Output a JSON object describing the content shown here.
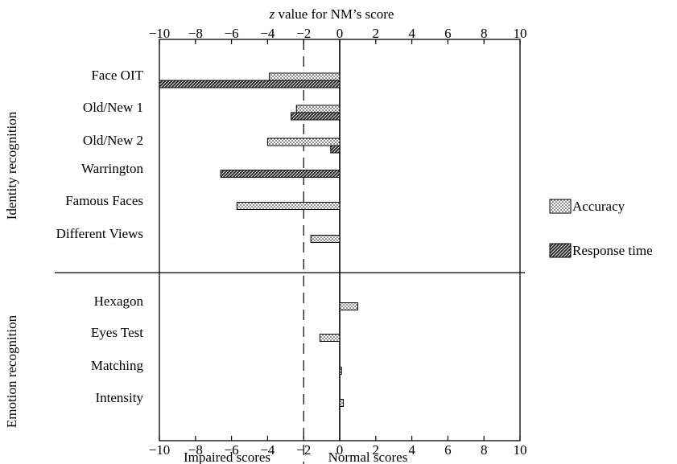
{
  "chart_data": {
    "type": "bar",
    "orientation": "horizontal",
    "title_top": "z value for NM’s score",
    "title_top_italic": "z",
    "title_top_rest": " value for NM’s score",
    "xlim": [
      -10,
      10
    ],
    "xticks": [
      -10,
      -8,
      -6,
      -4,
      -2,
      0,
      2,
      4,
      6,
      8,
      10
    ],
    "xtick_labels": [
      "−10",
      "−8",
      "−6",
      "−4",
      "−2",
      "0",
      "2",
      "4",
      "6",
      "8",
      "10"
    ],
    "cutoff": -2,
    "bottom_labels": {
      "left": "Impaired scores",
      "right": "Normal scores"
    },
    "groups": [
      {
        "label": "Identity recognition",
        "rows": [
          0,
          1,
          2,
          3,
          4,
          5
        ]
      },
      {
        "label": "Emotion recognition",
        "rows": [
          6,
          7,
          8,
          9
        ]
      }
    ],
    "categories": [
      "Face OIT",
      "Old/New 1",
      "Old/New 2",
      "Warrington",
      "Famous Faces",
      "Different Views",
      "Hexagon",
      "Eyes Test",
      "Matching",
      "Intensity"
    ],
    "series": [
      {
        "name": "Accuracy",
        "pattern": "dots",
        "values": [
          -3.9,
          -2.4,
          -4,
          null,
          -5.7,
          -1.6,
          1,
          -1.1,
          0.1,
          0.2
        ]
      },
      {
        "name": "Response time",
        "pattern": "hatch",
        "values": [
          -10,
          -2.7,
          -0.5,
          -6.6,
          null,
          null,
          null,
          null,
          null,
          null
        ]
      }
    ],
    "legend_position": "right"
  }
}
